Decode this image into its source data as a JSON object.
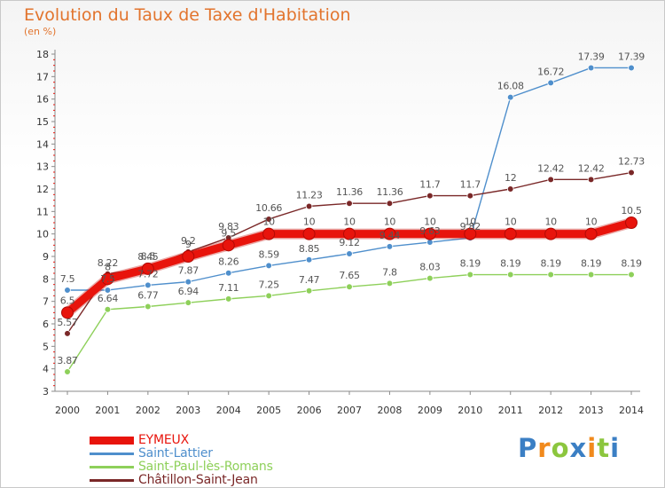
{
  "header": {
    "title": "Evolution du Taux de Taxe d'Habitation",
    "unit": "(en %)"
  },
  "logo": {
    "letters": [
      "P",
      "r",
      "o",
      "x",
      "i",
      "t",
      "i"
    ],
    "colors": [
      "#3b7fc4",
      "#f18a1c",
      "#8cc63e",
      "#3b7fc4",
      "#f18a1c",
      "#8cc63e",
      "#3b7fc4"
    ]
  },
  "chart_data": {
    "type": "line",
    "x": [
      2000,
      2001,
      2002,
      2003,
      2004,
      2005,
      2006,
      2007,
      2008,
      2009,
      2010,
      2011,
      2012,
      2013,
      2014
    ],
    "ylim": [
      3,
      18
    ],
    "yticks": [
      3,
      4,
      5,
      6,
      7,
      8,
      9,
      10,
      11,
      12,
      13,
      14,
      15,
      16,
      17,
      18
    ],
    "grid": false,
    "legend_position": "bottom-left",
    "series": [
      {
        "name": "Saint-Lattier",
        "color": "#4f8fcc",
        "values": [
          7.5,
          7.5,
          7.72,
          7.87,
          8.26,
          8.59,
          8.85,
          9.12,
          9.44,
          9.63,
          9.82,
          16.08,
          16.72,
          17.39,
          17.39
        ],
        "labels": [
          "7.5",
          "7.5",
          "7.72",
          "7.87",
          "8.26",
          "8.59",
          "8.85",
          "9.12",
          "9.44",
          "9.63",
          "9.82",
          "16.08",
          "16.72",
          "17.39",
          "17.39"
        ]
      },
      {
        "name": "Saint-Paul-lès-Romans",
        "color": "#8ed05a",
        "values": [
          3.87,
          6.64,
          6.77,
          6.94,
          7.11,
          7.25,
          7.47,
          7.65,
          7.8,
          8.03,
          8.19,
          8.19,
          8.19,
          8.19,
          8.19
        ],
        "labels": [
          "3.87",
          "6.64",
          "6.77",
          "6.94",
          "7.11",
          "7.25",
          "7.47",
          "7.65",
          "7.8",
          "8.03",
          "8.19",
          "8.19",
          "8.19",
          "8.19",
          "8.19"
        ]
      },
      {
        "name": "Châtillon-Saint-Jean",
        "color": "#7a2828",
        "values": [
          5.57,
          8.22,
          8.5,
          9.2,
          9.83,
          10.66,
          11.23,
          11.36,
          11.36,
          11.7,
          11.7,
          12,
          12.42,
          12.42,
          12.73
        ],
        "labels": [
          "5.57",
          "8.22",
          "8.5",
          "9.2",
          "9.83",
          "10.66",
          "11.23",
          "11.36",
          "11.36",
          "11.7",
          "11.7",
          "12",
          "12.42",
          "12.42",
          "12.73"
        ]
      },
      {
        "name": "EYMEUX",
        "color": "#e8140c",
        "values": [
          6.5,
          8,
          8.45,
          9,
          9.5,
          10,
          10,
          10,
          10,
          10,
          10,
          10,
          10,
          10,
          10.5
        ],
        "labels": [
          "6.5",
          "8",
          "8.45",
          "9",
          "9.5",
          "10",
          "10",
          "10",
          "10",
          "10",
          "10",
          "10",
          "10",
          "10",
          "10.5"
        ]
      }
    ],
    "legend_order": [
      "EYMEUX",
      "Saint-Lattier",
      "Saint-Paul-lès-Romans",
      "Châtillon-Saint-Jean"
    ]
  }
}
